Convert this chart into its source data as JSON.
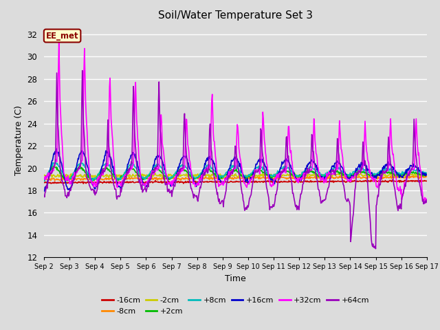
{
  "title": "Soil/Water Temperature Set 3",
  "xlabel": "Time",
  "ylabel": "Temperature (C)",
  "ylim": [
    12,
    33
  ],
  "yticks": [
    12,
    14,
    16,
    18,
    20,
    22,
    24,
    26,
    28,
    30,
    32
  ],
  "plot_bg_color": "#dcdcdc",
  "grid_color": "#ffffff",
  "annotation_text": "EE_met",
  "annotation_bg": "#ffffcc",
  "annotation_border": "#8b0000",
  "series": [
    {
      "label": "-16cm",
      "color": "#cc0000",
      "linewidth": 1.2
    },
    {
      "label": "-8cm",
      "color": "#ff8800",
      "linewidth": 1.2
    },
    {
      "label": "-2cm",
      "color": "#cccc00",
      "linewidth": 1.2
    },
    {
      "label": "+2cm",
      "color": "#00bb00",
      "linewidth": 1.2
    },
    {
      "label": "+8cm",
      "color": "#00bbbb",
      "linewidth": 1.2
    },
    {
      "label": "+16cm",
      "color": "#0000cc",
      "linewidth": 1.2
    },
    {
      "label": "+32cm",
      "color": "#ff00ff",
      "linewidth": 1.2
    },
    {
      "label": "+64cm",
      "color": "#9900bb",
      "linewidth": 1.2
    }
  ],
  "x_start": 0,
  "x_end": 15,
  "num_points": 720,
  "xtick_labels": [
    "Sep 2",
    "Sep 3",
    "Sep 4",
    "Sep 5",
    "Sep 6",
    "Sep 7",
    "Sep 8",
    "Sep 9",
    "Sep 10",
    "Sep 11",
    "Sep 12",
    "Sep 13",
    "Sep 14",
    "Sep 15",
    "Sep 16",
    "Sep 17"
  ],
  "xtick_positions": [
    0,
    1,
    2,
    3,
    4,
    5,
    6,
    7,
    8,
    9,
    10,
    11,
    12,
    13,
    14,
    15
  ]
}
